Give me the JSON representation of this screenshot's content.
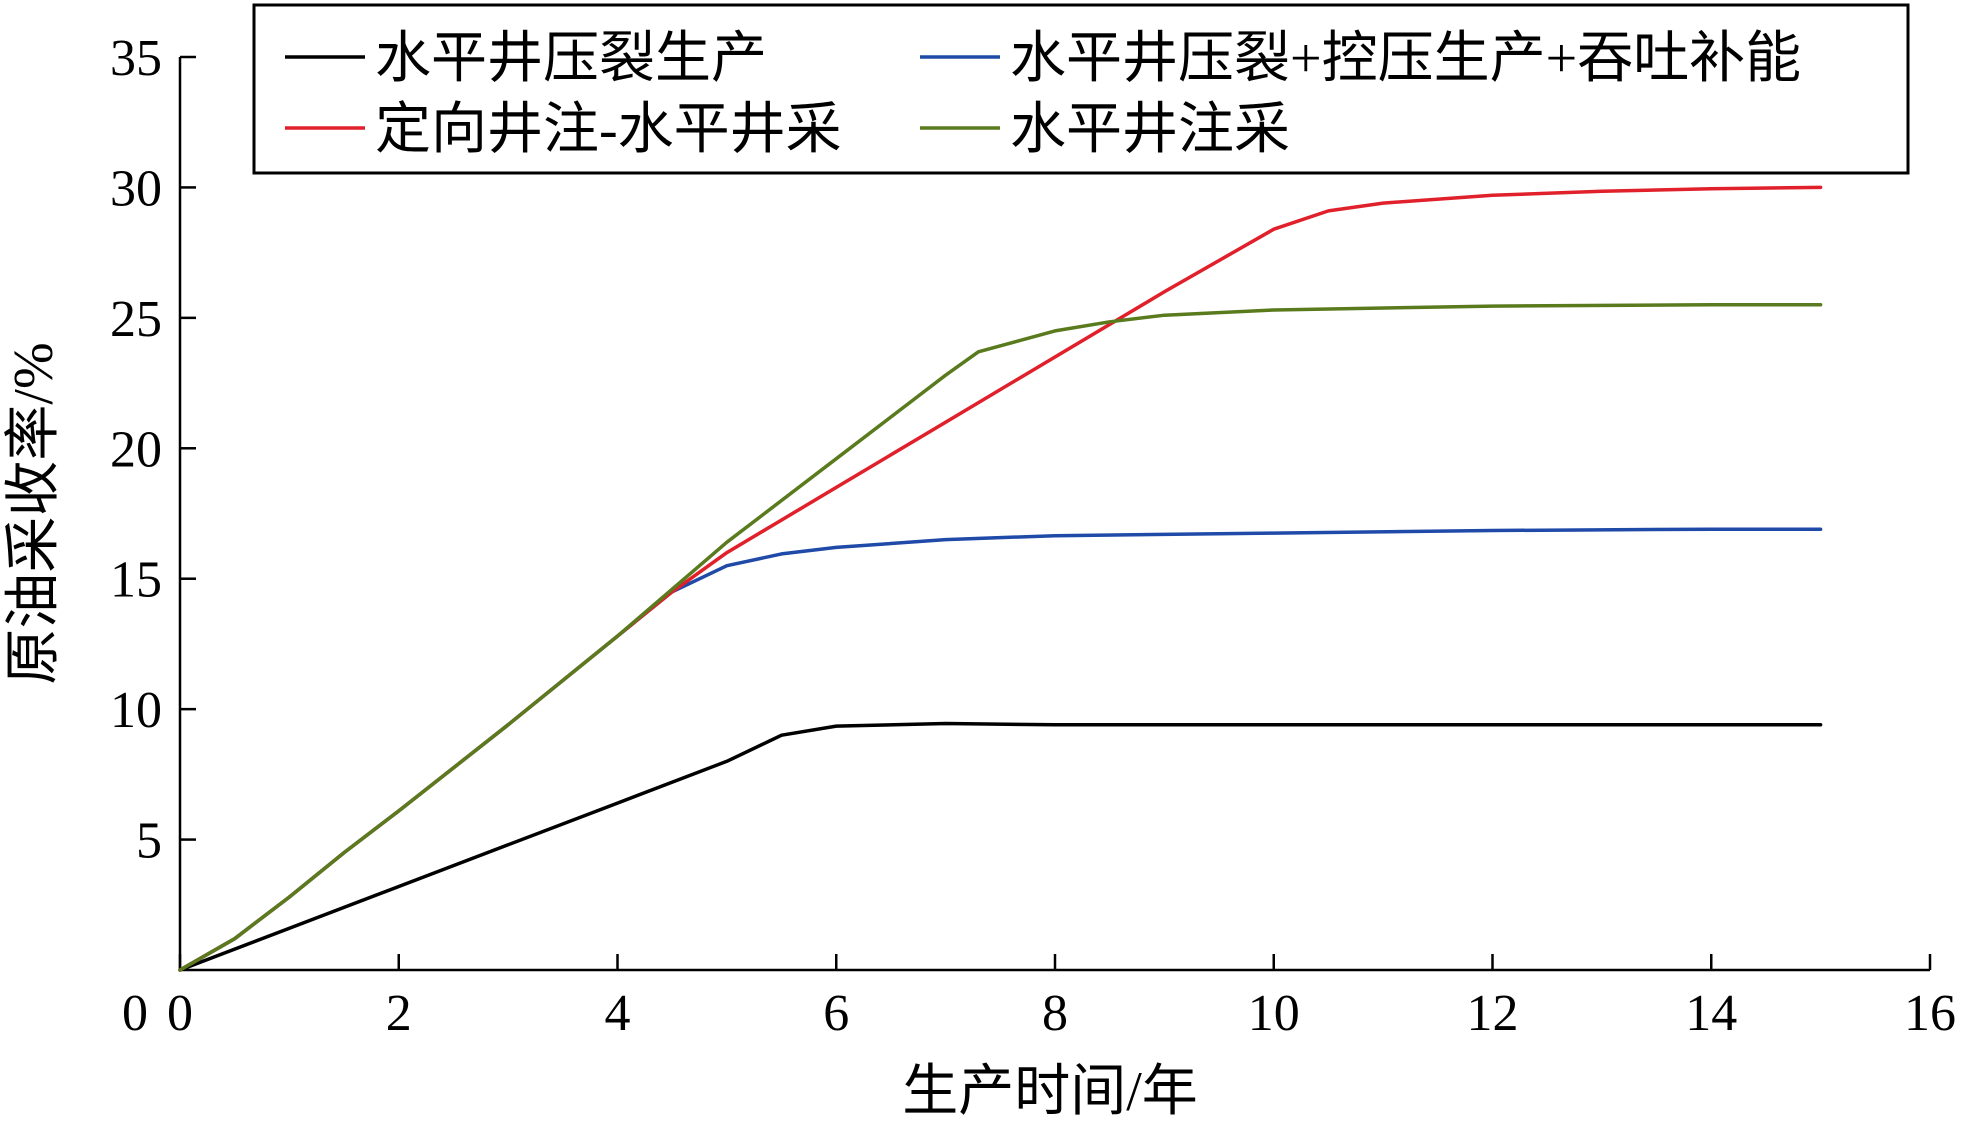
{
  "chart_data": {
    "type": "line",
    "title": "",
    "xlabel": "生产时间/年",
    "ylabel": "原油采收率/%",
    "xlim": [
      0,
      16
    ],
    "ylim": [
      0,
      35
    ],
    "xticks": [
      0,
      2,
      4,
      6,
      8,
      10,
      12,
      14,
      16
    ],
    "yticks": [
      5,
      10,
      15,
      20,
      25,
      30,
      35
    ],
    "yzero_label": "0",
    "grid": false,
    "legend_position": "top",
    "series": [
      {
        "name": "水平井压裂生产",
        "color": "#000000",
        "points": [
          [
            0,
            0
          ],
          [
            1,
            1.6
          ],
          [
            2,
            3.2
          ],
          [
            3,
            4.8
          ],
          [
            4,
            6.4
          ],
          [
            5,
            8.0
          ],
          [
            5.5,
            9.0
          ],
          [
            6,
            9.35
          ],
          [
            7,
            9.45
          ],
          [
            8,
            9.4
          ],
          [
            10,
            9.4
          ],
          [
            12,
            9.4
          ],
          [
            14,
            9.4
          ],
          [
            15,
            9.4
          ]
        ]
      },
      {
        "name": "水平井压裂+控压生产+吞吐补能",
        "color": "#1f4aa8",
        "points": [
          [
            0,
            0
          ],
          [
            0.5,
            1.2
          ],
          [
            1,
            2.8
          ],
          [
            1.5,
            4.5
          ],
          [
            2,
            6.1
          ],
          [
            3,
            9.4
          ],
          [
            4,
            12.8
          ],
          [
            4.5,
            14.5
          ],
          [
            5,
            15.5
          ],
          [
            5.5,
            15.95
          ],
          [
            6,
            16.2
          ],
          [
            7,
            16.5
          ],
          [
            8,
            16.65
          ],
          [
            10,
            16.75
          ],
          [
            12,
            16.85
          ],
          [
            14,
            16.9
          ],
          [
            15,
            16.9
          ]
        ]
      },
      {
        "name": "定向井注-水平井采",
        "color": "#e0202a",
        "points": [
          [
            0,
            0
          ],
          [
            0.5,
            1.2
          ],
          [
            1,
            2.8
          ],
          [
            1.5,
            4.5
          ],
          [
            2,
            6.1
          ],
          [
            3,
            9.4
          ],
          [
            4,
            12.8
          ],
          [
            4.5,
            14.5
          ],
          [
            5,
            16.0
          ],
          [
            6,
            18.5
          ],
          [
            7,
            21.0
          ],
          [
            8,
            23.5
          ],
          [
            9,
            26.0
          ],
          [
            10,
            28.4
          ],
          [
            10.5,
            29.1
          ],
          [
            11,
            29.4
          ],
          [
            12,
            29.7
          ],
          [
            13,
            29.85
          ],
          [
            14,
            29.95
          ],
          [
            15,
            30.0
          ]
        ]
      },
      {
        "name": "水平井注采",
        "color": "#5a7a1e",
        "points": [
          [
            0,
            0
          ],
          [
            0.5,
            1.2
          ],
          [
            1,
            2.8
          ],
          [
            1.5,
            4.5
          ],
          [
            2,
            6.1
          ],
          [
            3,
            9.4
          ],
          [
            4,
            12.8
          ],
          [
            5,
            16.4
          ],
          [
            6,
            19.6
          ],
          [
            7,
            22.8
          ],
          [
            7.3,
            23.7
          ],
          [
            8,
            24.5
          ],
          [
            8.5,
            24.85
          ],
          [
            9,
            25.1
          ],
          [
            10,
            25.3
          ],
          [
            12,
            25.45
          ],
          [
            14,
            25.5
          ],
          [
            15,
            25.5
          ]
        ]
      }
    ]
  }
}
